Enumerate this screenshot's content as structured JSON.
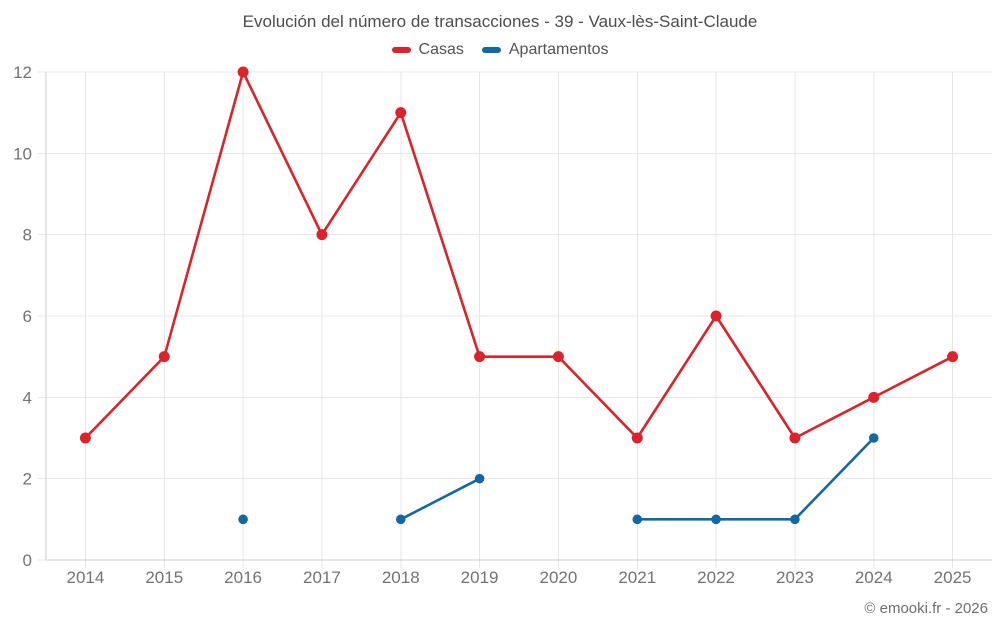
{
  "title": "Evolución del número de transacciones - 39 - Vaux-lès-Saint-Claude",
  "legend": [
    {
      "label": "Casas",
      "color": "#da232a"
    },
    {
      "label": "Apartamentos",
      "color": "#1268a2"
    }
  ],
  "footer": "© emooki.fr - 2026",
  "colors": {
    "grid": "#e7e7e7",
    "axis": "#cfcfcf",
    "tick_label": "#737373"
  },
  "chart_data": {
    "type": "line",
    "title": "Evolución del número de transacciones - 39 - Vaux-lès-Saint-Claude",
    "categories": [
      "2014",
      "2015",
      "2016",
      "2017",
      "2018",
      "2019",
      "2020",
      "2021",
      "2022",
      "2023",
      "2024",
      "2025"
    ],
    "series": [
      {
        "name": "Casas",
        "color": "#da232a",
        "values": [
          3,
          5,
          12,
          8,
          11,
          5,
          5,
          3,
          6,
          3,
          4,
          5
        ]
      },
      {
        "name": "Apartamentos",
        "color": "#1268a2",
        "values": [
          null,
          null,
          1,
          null,
          1,
          2,
          null,
          1,
          1,
          1,
          3,
          null
        ]
      }
    ],
    "xlabel": "",
    "ylabel": "",
    "ylim": [
      0,
      12
    ],
    "yticks": [
      0,
      2,
      4,
      6,
      8,
      10,
      12
    ],
    "grid": true,
    "legend_position": "top"
  }
}
